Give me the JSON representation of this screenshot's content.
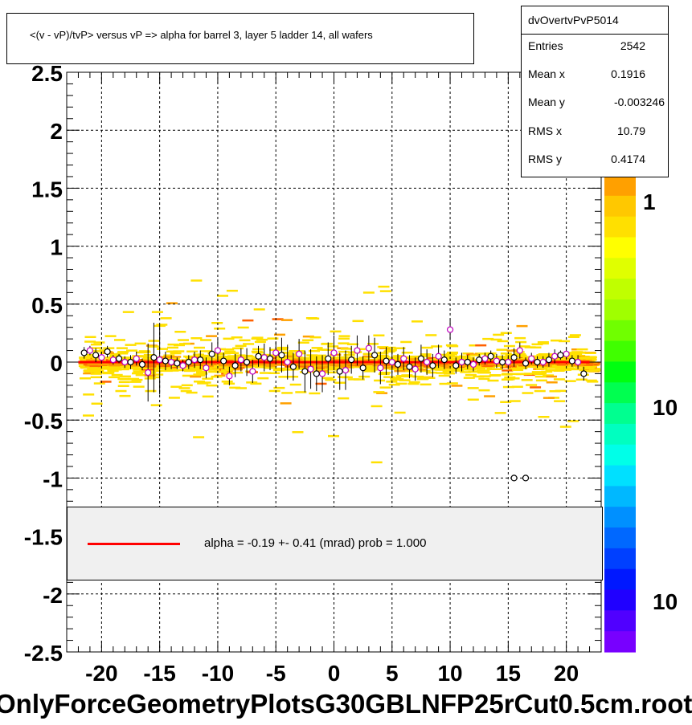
{
  "title": "<(v - vP)/tvP> versus   vP => alpha for barrel 3, layer 5 ladder 14, all wafers",
  "footer": "OnlyForceGeometryPlotsG30GBLNFP25rCut0.5cm.root",
  "stats": {
    "name": "dvOvertvPvP5014",
    "rows": [
      {
        "key": "Entries",
        "value": "2542"
      },
      {
        "key": "Mean x",
        "value": "0.1916"
      },
      {
        "key": "Mean y",
        "value": "-0.003246"
      },
      {
        "key": "RMS x",
        "value": "10.79"
      },
      {
        "key": "RMS y",
        "value": "0.4174"
      }
    ]
  },
  "legend": {
    "label": "alpha =   -0.19 +-  0.41 (mrad) prob = 1.000",
    "line_color": "#ff0000"
  },
  "palette": {
    "labels": [
      "1",
      "10",
      "10"
    ]
  },
  "chart_data": {
    "type": "scatter",
    "xlim": [
      -23,
      23
    ],
    "ylim": [
      -2.5,
      2.5
    ],
    "x_ticks": [
      -20,
      -15,
      -10,
      -5,
      0,
      5,
      10,
      15,
      20
    ],
    "y_ticks": [
      -2.5,
      -2,
      -1.5,
      -1,
      -0.5,
      0,
      0.5,
      1,
      1.5,
      2,
      2.5
    ],
    "x_tick_labels": [
      "-20",
      "-15",
      "-10",
      "-5",
      "0",
      "5",
      "10",
      "15",
      "20"
    ],
    "y_tick_labels": [
      "-2.5",
      "-2",
      "-1.5",
      "-1",
      "-0.5",
      "0",
      "0.5",
      "1",
      "1.5",
      "2",
      "2.5"
    ],
    "grid": true,
    "fit_line": {
      "x": [
        -22,
        22
      ],
      "y": [
        0.0,
        0.0
      ],
      "color": "#ff0000"
    },
    "profile_black": {
      "x": [
        -21.5,
        -20.5,
        -19.5,
        -18.5,
        -17.5,
        -16.5,
        -15.5,
        -14.5,
        -13.5,
        -12.5,
        -11.5,
        -10.5,
        -9.5,
        -8.5,
        -7.5,
        -6.5,
        -5.5,
        -4.5,
        -3.5,
        -2.5,
        -1.5,
        -0.5,
        0.5,
        1.5,
        2.5,
        3.5,
        4.5,
        5.5,
        6.5,
        7.5,
        8.5,
        9.5,
        10.5,
        11.5,
        12.5,
        13.5,
        14.5,
        15.5,
        16.5,
        17.5,
        18.5,
        19.5,
        20.5,
        21.5
      ],
      "y": [
        0.08,
        0.06,
        0.09,
        0.03,
        0.0,
        -0.02,
        0.04,
        0.01,
        -0.01,
        0.0,
        0.02,
        0.07,
        0.01,
        -0.03,
        0.0,
        0.05,
        0.03,
        0.06,
        -0.04,
        -0.08,
        -0.1,
        0.03,
        -0.08,
        0.02,
        -0.05,
        0.06,
        0.01,
        -0.02,
        -0.04,
        0.03,
        -0.03,
        0.02,
        -0.03,
        0.0,
        0.02,
        0.05,
        0.0,
        0.04,
        -0.01,
        0.0,
        0.02,
        0.06,
        0.01,
        -0.1
      ],
      "err": [
        0.05,
        0.06,
        0.05,
        0.04,
        0.06,
        0.05,
        0.3,
        0.08,
        0.05,
        0.06,
        0.08,
        0.1,
        0.07,
        0.1,
        0.12,
        0.09,
        0.1,
        0.15,
        0.12,
        0.18,
        0.15,
        0.14,
        0.16,
        0.12,
        0.1,
        0.15,
        0.12,
        0.09,
        0.1,
        0.12,
        0.1,
        0.08,
        0.07,
        0.06,
        0.05,
        0.05,
        0.06,
        0.08,
        0.05,
        0.05,
        0.06,
        0.04,
        0.05,
        0.06
      ]
    },
    "profile_magenta": {
      "x": [
        -21,
        -20,
        -19,
        -18,
        -17,
        -16,
        -15,
        -14,
        -13,
        -12,
        -11,
        -10,
        -9,
        -8,
        -7,
        -6,
        -5,
        -4,
        -3,
        -2,
        -1,
        0,
        1,
        2,
        3,
        4,
        5,
        6,
        7,
        8,
        9,
        10,
        11,
        12,
        13,
        14,
        15,
        16,
        17,
        18,
        19,
        20,
        21
      ],
      "y": [
        0.1,
        0.04,
        0.02,
        0.0,
        0.03,
        -0.09,
        0.02,
        0.0,
        -0.03,
        0.02,
        -0.05,
        0.1,
        -0.12,
        0.02,
        -0.08,
        0.04,
        0.08,
        0.0,
        0.07,
        -0.06,
        -0.1,
        0.08,
        -0.07,
        0.1,
        0.12,
        -0.05,
        0.0,
        0.03,
        -0.06,
        0.0,
        0.05,
        0.28,
        0.0,
        -0.02,
        0.03,
        0.01,
        0.0,
        0.1,
        0.03,
        0.0,
        0.05,
        0.07,
        0.0
      ],
      "err": [
        0.04,
        0.05,
        0.04,
        0.05,
        0.06,
        0.25,
        0.3,
        0.06,
        0.05,
        0.07,
        0.09,
        0.1,
        0.08,
        0.1,
        0.1,
        0.12,
        0.1,
        0.15,
        0.13,
        0.17,
        0.16,
        0.15,
        0.17,
        0.13,
        0.11,
        0.14,
        0.12,
        0.1,
        0.1,
        0.11,
        0.1,
        0.09,
        0.08,
        0.06,
        0.05,
        0.06,
        0.06,
        0.07,
        0.05,
        0.05,
        0.06,
        0.05,
        0.06
      ]
    },
    "outliers": {
      "x": [
        15.5,
        16.5
      ],
      "y": [
        -1.0,
        -1.0
      ]
    }
  }
}
